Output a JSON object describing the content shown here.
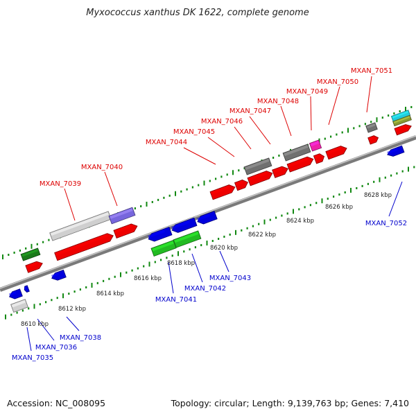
{
  "title": "Myxococcus xanthus DK 1622, complete genome",
  "footer": {
    "accession": "Accession: NC_008095",
    "stats": "Topology: circular; Length: 9,139,763 bp; Genes: 7,410"
  },
  "scale": {
    "unit": "kbp",
    "ticks": [
      {
        "label": "8610 kbp",
        "value": 8610
      },
      {
        "label": "8612 kbp",
        "value": 8612
      },
      {
        "label": "8614 kbp",
        "value": 8614
      },
      {
        "label": "8616 kbp",
        "value": 8616
      },
      {
        "label": "8618 kbp",
        "value": 8618
      },
      {
        "label": "8620 kbp",
        "value": 8620
      },
      {
        "label": "8622 kbp",
        "value": 8622
      },
      {
        "label": "8624 kbp",
        "value": 8624
      },
      {
        "label": "8626 kbp",
        "value": 8626
      },
      {
        "label": "8628 kbp",
        "value": 8628
      }
    ]
  },
  "gene_labels": {
    "forward": [
      "MXAN_7039",
      "MXAN_7040",
      "MXAN_7044",
      "MXAN_7045",
      "MXAN_7046",
      "MXAN_7047",
      "MXAN_7048",
      "MXAN_7049",
      "MXAN_7050",
      "MXAN_7051"
    ],
    "reverse": [
      "MXAN_7035",
      "MXAN_7036",
      "MXAN_7038",
      "MXAN_7041",
      "MXAN_7042",
      "MXAN_7043",
      "MXAN_7052"
    ]
  },
  "colors": {
    "forward_label": "#dd0000",
    "reverse_label": "#0000cc",
    "red_gene": "#ee0000",
    "blue_gene": "#0000dd",
    "green_gene": "#22bb22",
    "dark_green_gene": "#1a7a1a",
    "gray_gene": "#707070",
    "light_gray_gene": "#cfcfcf",
    "purple_gene": "#7766dd",
    "magenta_gene": "#ee22aa",
    "cyan_gene": "#22ccdd",
    "olive_gene": "#889933",
    "backbone": "#888888",
    "tick_marks": "#118811"
  }
}
